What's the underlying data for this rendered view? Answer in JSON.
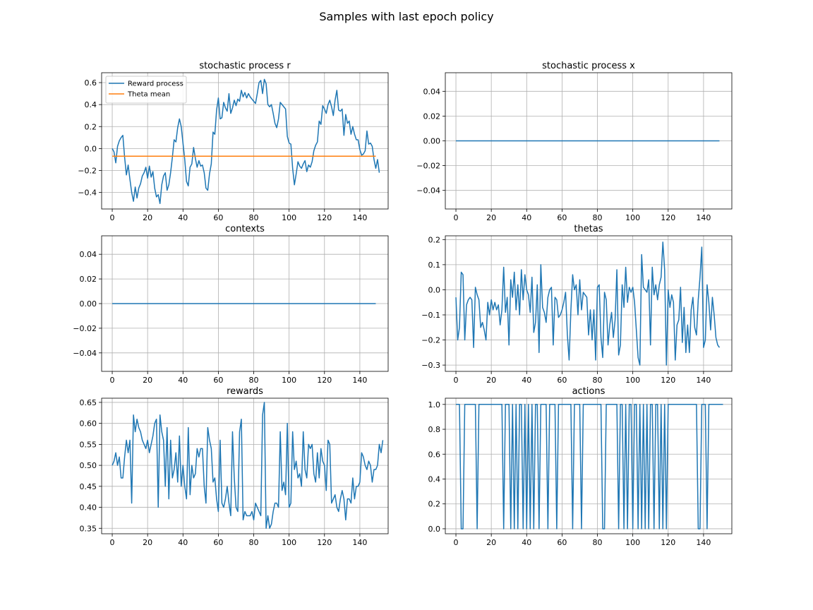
{
  "figure": {
    "suptitle": "Samples with last epoch policy"
  },
  "chart_data": [
    {
      "type": "line",
      "title": "stochastic process r",
      "xlim": [
        -6,
        156
      ],
      "ylim": [
        -0.55,
        0.69
      ],
      "xticks": [
        0,
        20,
        40,
        60,
        80,
        100,
        120,
        140
      ],
      "yticks": [
        -0.4,
        -0.2,
        0.0,
        0.2,
        0.4,
        0.6
      ],
      "ytick_labels": [
        "−0.4",
        "−0.2",
        "0.0",
        "0.2",
        "0.4",
        "0.6"
      ],
      "grid": true,
      "legend": "top-left",
      "series": [
        {
          "name": "Reward process",
          "color": "#1f77b4",
          "values": [
            0.0,
            -0.03,
            -0.13,
            0.02,
            0.07,
            0.1,
            0.12,
            -0.08,
            -0.24,
            -0.15,
            -0.28,
            -0.4,
            -0.48,
            -0.35,
            -0.45,
            -0.36,
            -0.32,
            -0.25,
            -0.22,
            -0.17,
            -0.27,
            -0.16,
            -0.26,
            -0.21,
            -0.36,
            -0.44,
            -0.42,
            -0.5,
            -0.33,
            -0.25,
            -0.22,
            -0.38,
            -0.33,
            -0.22,
            -0.08,
            0.08,
            0.06,
            0.19,
            0.27,
            0.2,
            0.05,
            -0.1,
            -0.3,
            -0.34,
            -0.17,
            -0.14,
            0.01,
            -0.09,
            -0.17,
            -0.11,
            -0.16,
            -0.15,
            -0.22,
            -0.36,
            -0.38,
            -0.23,
            -0.14,
            0.15,
            0.13,
            0.35,
            0.46,
            0.27,
            0.28,
            0.42,
            0.37,
            0.34,
            0.5,
            0.32,
            0.37,
            0.44,
            0.39,
            0.45,
            0.43,
            0.53,
            0.47,
            0.51,
            0.46,
            0.5,
            0.47,
            0.45,
            0.43,
            0.41,
            0.5,
            0.6,
            0.62,
            0.5,
            0.63,
            0.59,
            0.4,
            0.38,
            0.4,
            0.32,
            0.23,
            0.19,
            0.27,
            0.42,
            0.4,
            0.38,
            0.36,
            0.11,
            0.05,
            0.04,
            -0.18,
            -0.33,
            -0.23,
            -0.12,
            -0.16,
            -0.18,
            -0.14,
            -0.11,
            -0.21,
            -0.15,
            -0.17,
            -0.12,
            -0.02,
            0.03,
            0.06,
            0.25,
            0.22,
            0.39,
            0.36,
            0.32,
            0.4,
            0.44,
            0.38,
            0.3,
            0.44,
            0.53,
            0.35,
            0.34,
            0.36,
            0.12,
            0.31,
            0.23,
            0.25,
            0.13,
            0.2,
            0.13,
            0.08,
            0.08,
            -0.01,
            -0.06,
            -0.05,
            -0.02,
            0.16,
            0.04,
            0.05,
            0.02,
            -0.1,
            -0.18,
            -0.1,
            -0.22
          ]
        },
        {
          "name": "Theta mean",
          "color": "#ff7f0e",
          "constant": -0.07
        }
      ]
    },
    {
      "type": "line",
      "title": "stochastic process x",
      "xlim": [
        -6,
        156
      ],
      "ylim": [
        -0.055,
        0.055
      ],
      "xticks": [
        0,
        20,
        40,
        60,
        80,
        100,
        120,
        140
      ],
      "yticks": [
        -0.04,
        -0.02,
        0.0,
        0.02,
        0.04
      ],
      "ytick_labels": [
        "−0.04",
        "−0.02",
        "0.00",
        "0.02",
        "0.04"
      ],
      "grid": true,
      "series": [
        {
          "color": "#1f77b4",
          "constant": 0.0
        }
      ]
    },
    {
      "type": "line",
      "title": "contexts",
      "xlim": [
        -6,
        156
      ],
      "ylim": [
        -0.055,
        0.055
      ],
      "xticks": [
        0,
        20,
        40,
        60,
        80,
        100,
        120,
        140
      ],
      "yticks": [
        -0.04,
        -0.02,
        0.0,
        0.02,
        0.04
      ],
      "ytick_labels": [
        "−0.04",
        "−0.02",
        "0.00",
        "0.02",
        "0.04"
      ],
      "grid": true,
      "series": [
        {
          "color": "#1f77b4",
          "constant": 0.0
        }
      ]
    },
    {
      "type": "line",
      "title": "thetas",
      "xlim": [
        -6,
        156
      ],
      "ylim": [
        -0.325,
        0.215
      ],
      "xticks": [
        0,
        20,
        40,
        60,
        80,
        100,
        120,
        140
      ],
      "yticks": [
        -0.3,
        -0.2,
        -0.1,
        0.0,
        0.1,
        0.2
      ],
      "ytick_labels": [
        "−0.3",
        "−0.2",
        "−0.1",
        "0.0",
        "0.1",
        "0.2"
      ],
      "grid": true,
      "series": [
        {
          "color": "#1f77b4",
          "values": [
            -0.03,
            -0.2,
            -0.15,
            0.07,
            0.06,
            -0.2,
            -0.06,
            -0.04,
            -0.03,
            -0.04,
            -0.23,
            0.01,
            -0.02,
            -0.04,
            -0.15,
            -0.13,
            -0.16,
            -0.2,
            -0.05,
            -0.1,
            -0.04,
            -0.08,
            -0.05,
            -0.08,
            -0.06,
            -0.14,
            -0.08,
            0.09,
            -0.09,
            -0.03,
            -0.22,
            0.04,
            -0.03,
            0.07,
            -0.08,
            0.02,
            -0.1,
            0.08,
            -0.04,
            0.06,
            0.0,
            -0.02,
            -0.09,
            0.05,
            -0.17,
            -0.13,
            0.02,
            -0.25,
            0.1,
            -0.07,
            -0.09,
            -0.13,
            -0.03,
            0.0,
            0.01,
            -0.22,
            -0.03,
            -0.04,
            -0.11,
            -0.1,
            -0.08,
            -0.05,
            -0.01,
            -0.18,
            -0.28,
            -0.08,
            0.06,
            0.0,
            0.02,
            -0.1,
            0.04,
            -0.08,
            -0.01,
            -0.02,
            -0.03,
            -0.18,
            -0.08,
            -0.2,
            -0.08,
            -0.28,
            0.01,
            0.02,
            -0.19,
            -0.27,
            -0.01,
            -0.04,
            -0.22,
            -0.14,
            -0.09,
            -0.19,
            -0.12,
            0.08,
            -0.26,
            -0.22,
            0.02,
            -0.07,
            0.09,
            -0.05,
            0.01,
            -0.01,
            0.01,
            -0.05,
            -0.16,
            -0.27,
            -0.3,
            0.14,
            0.01,
            0.0,
            -0.01,
            0.04,
            -0.22,
            0.09,
            -0.02,
            0.02,
            -0.04,
            0.02,
            0.05,
            0.19,
            0.08,
            -0.3,
            0.0,
            -0.07,
            -0.02,
            -0.05,
            -0.28,
            -0.14,
            -0.12,
            0.01,
            -0.21,
            -0.07,
            -0.25,
            -0.14,
            -0.25,
            -0.08,
            -0.03,
            -0.15,
            -0.18,
            -0.04,
            0.05,
            0.17,
            -0.23,
            -0.2,
            0.02,
            -0.05,
            -0.16,
            -0.03,
            -0.1,
            -0.19,
            -0.22,
            -0.23
          ]
        }
      ]
    },
    {
      "type": "line",
      "title": "rewards",
      "xlim": [
        -6,
        156
      ],
      "ylim": [
        0.337,
        0.66
      ],
      "xticks": [
        0,
        20,
        40,
        60,
        80,
        100,
        120,
        140
      ],
      "yticks": [
        0.35,
        0.4,
        0.45,
        0.5,
        0.55,
        0.6,
        0.65
      ],
      "ytick_labels": [
        "0.35",
        "0.40",
        "0.45",
        "0.50",
        "0.55",
        "0.60",
        "0.65"
      ],
      "grid": true,
      "series": [
        {
          "color": "#1f77b4",
          "values": [
            0.5,
            0.51,
            0.53,
            0.5,
            0.52,
            0.47,
            0.47,
            0.52,
            0.56,
            0.53,
            0.56,
            0.41,
            0.62,
            0.58,
            0.61,
            0.59,
            0.58,
            0.56,
            0.55,
            0.54,
            0.56,
            0.53,
            0.55,
            0.57,
            0.6,
            0.61,
            0.4,
            0.62,
            0.58,
            0.56,
            0.45,
            0.59,
            0.42,
            0.56,
            0.47,
            0.49,
            0.53,
            0.46,
            0.57,
            0.45,
            0.5,
            0.45,
            0.42,
            0.59,
            0.43,
            0.5,
            0.47,
            0.48,
            0.54,
            0.52,
            0.54,
            0.54,
            0.45,
            0.41,
            0.59,
            0.56,
            0.54,
            0.46,
            0.47,
            0.42,
            0.39,
            0.56,
            0.41,
            0.4,
            0.42,
            0.45,
            0.41,
            0.38,
            0.58,
            0.47,
            0.4,
            0.39,
            0.58,
            0.61,
            0.37,
            0.39,
            0.38,
            0.38,
            0.38,
            0.39,
            0.37,
            0.41,
            0.4,
            0.39,
            0.38,
            0.62,
            0.65,
            0.35,
            0.38,
            0.35,
            0.36,
            0.39,
            0.41,
            0.41,
            0.4,
            0.58,
            0.44,
            0.46,
            0.43,
            0.6,
            0.4,
            0.41,
            0.58,
            0.49,
            0.51,
            0.47,
            0.48,
            0.45,
            0.58,
            0.49,
            0.47,
            0.55,
            0.54,
            0.55,
            0.48,
            0.46,
            0.53,
            0.47,
            0.54,
            0.51,
            0.5,
            0.44,
            0.56,
            0.55,
            0.41,
            0.42,
            0.43,
            0.4,
            0.39,
            0.42,
            0.44,
            0.42,
            0.37,
            0.42,
            0.42,
            0.41,
            0.47,
            0.42,
            0.45,
            0.45,
            0.46,
            0.53,
            0.52,
            0.5,
            0.49,
            0.51,
            0.5,
            0.46,
            0.49,
            0.49,
            0.5,
            0.55,
            0.53,
            0.56
          ]
        }
      ]
    },
    {
      "type": "line",
      "title": "actions",
      "xlim": [
        -6,
        156
      ],
      "ylim": [
        -0.04,
        1.05
      ],
      "xticks": [
        0,
        20,
        40,
        60,
        80,
        100,
        120,
        140
      ],
      "yticks": [
        0.0,
        0.2,
        0.4,
        0.6,
        0.8,
        1.0
      ],
      "ytick_labels": [
        "0.0",
        "0.2",
        "0.4",
        "0.6",
        "0.8",
        "1.0"
      ],
      "grid": true,
      "series": [
        {
          "color": "#1f77b4",
          "values": [
            1,
            1,
            1,
            0,
            0,
            1,
            1,
            1,
            1,
            1,
            1,
            1,
            0,
            1,
            1,
            1,
            1,
            1,
            1,
            1,
            1,
            1,
            1,
            1,
            1,
            1,
            1,
            0,
            1,
            1,
            1,
            0,
            1,
            0,
            1,
            0,
            1,
            1,
            0,
            1,
            0,
            1,
            0,
            1,
            0,
            1,
            1,
            0,
            1,
            1,
            1,
            1,
            0,
            1,
            1,
            1,
            1,
            0,
            1,
            1,
            1,
            1,
            1,
            1,
            1,
            1,
            0,
            1,
            1,
            1,
            1,
            0,
            1,
            1,
            1,
            1,
            1,
            1,
            1,
            1,
            1,
            1,
            1,
            0,
            0,
            1,
            1,
            1,
            1,
            1,
            1,
            1,
            0,
            1,
            1,
            0,
            1,
            0,
            1,
            1,
            0,
            1,
            1,
            0,
            1,
            0,
            1,
            0,
            1,
            0,
            1,
            1,
            0,
            1,
            1,
            0,
            1,
            0,
            1,
            0,
            1,
            1,
            1,
            1,
            1,
            1,
            1,
            1,
            1,
            1,
            1,
            1,
            1,
            1,
            1,
            1,
            1,
            0,
            0,
            1,
            1,
            1,
            0,
            1,
            1,
            1,
            1,
            1,
            1,
            1,
            1,
            1
          ]
        }
      ]
    }
  ]
}
